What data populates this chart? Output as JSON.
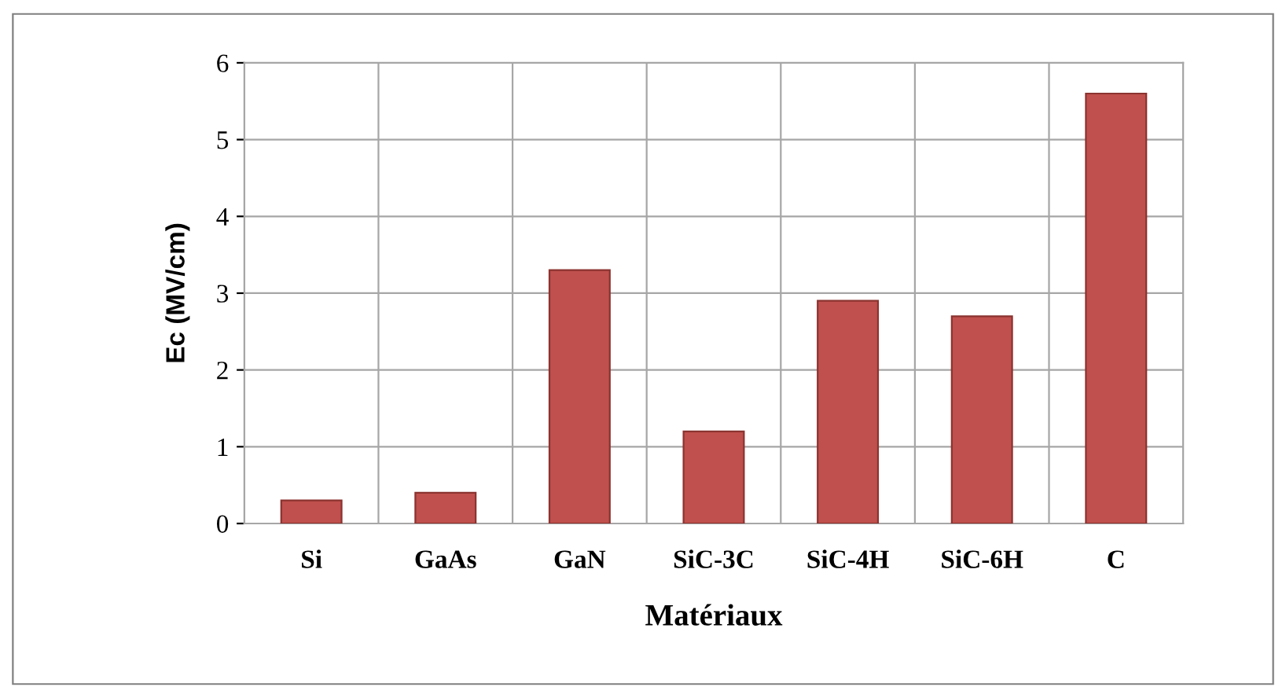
{
  "chart_data": {
    "type": "bar",
    "xlabel": "Matériaux",
    "ylabel": "Ec (MV/cm)",
    "categories": [
      "Si",
      "GaAs",
      "GaN",
      "SiC-3C",
      "SiC-4H",
      "SiC-6H",
      "C"
    ],
    "values": [
      0.3,
      0.4,
      3.3,
      1.2,
      2.9,
      2.7,
      5.6
    ],
    "color": "#c0504d",
    "ylim": [
      0,
      6
    ],
    "yticks": [
      0,
      1,
      2,
      3,
      4,
      5,
      6
    ],
    "grid": true,
    "legend": false
  }
}
